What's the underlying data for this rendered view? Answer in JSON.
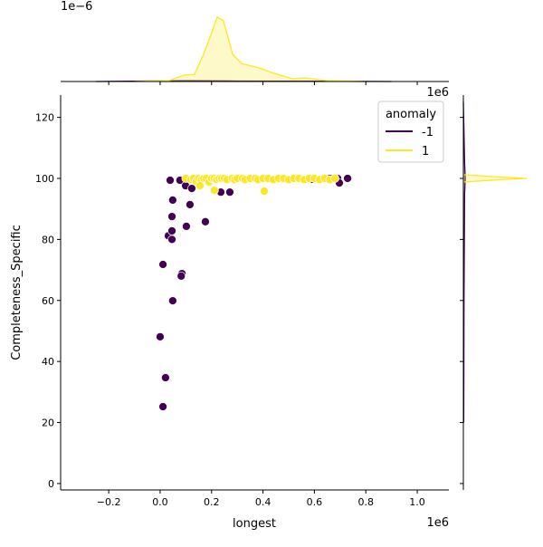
{
  "chart_data": {
    "type": "scatter",
    "subtype": "jointplot",
    "xlabel": "longest",
    "ylabel": "Completeness_Specific",
    "x_offset_label": "1e6",
    "top_marginal_offset_label": "1e6",
    "top_marginal_y_offset_label": "1e−6",
    "xlim": [
      -0.387,
      1.123
    ],
    "ylim": [
      -2.1,
      127.3
    ],
    "xticks": [
      -0.2,
      0.0,
      0.2,
      0.4,
      0.6,
      0.8,
      1.0
    ],
    "xtick_labels": [
      "−0.2",
      "0.0",
      "0.2",
      "0.4",
      "0.6",
      "0.8",
      "1.0"
    ],
    "yticks": [
      0,
      20,
      40,
      60,
      80,
      100,
      120
    ],
    "ytick_labels": [
      "0",
      "20",
      "40",
      "60",
      "80",
      "100",
      "120"
    ],
    "grid": false,
    "legend": {
      "title": "anomaly",
      "placement": "top-right",
      "entries": [
        "-1",
        "1"
      ]
    },
    "colors": {
      "-1": "#440154",
      "1": "#fde725"
    },
    "series": [
      {
        "name": "-1",
        "points": [
          [
            0.039,
            99.4
          ],
          [
            0.077,
            99.4
          ],
          [
            0.099,
            97.6
          ],
          [
            0.123,
            96.7
          ],
          [
            0.049,
            92.9
          ],
          [
            0.116,
            91.4
          ],
          [
            0.046,
            87.5
          ],
          [
            0.102,
            84.3
          ],
          [
            0.176,
            85.8
          ],
          [
            0.032,
            81.2
          ],
          [
            0.046,
            82.8
          ],
          [
            0.046,
            80.0
          ],
          [
            0.011,
            71.8
          ],
          [
            0.085,
            68.8
          ],
          [
            0.082,
            68.0
          ],
          [
            0.049,
            59.9
          ],
          [
            0.0,
            48.1
          ],
          [
            0.021,
            34.7
          ],
          [
            0.011,
            25.2
          ],
          [
            0.236,
            95.5
          ],
          [
            0.271,
            95.5
          ],
          [
            0.59,
            99.7
          ],
          [
            0.66,
            100.0
          ],
          [
            0.69,
            100.0
          ],
          [
            0.697,
            98.5
          ],
          [
            0.729,
            100.0
          ]
        ]
      },
      {
        "name": "1",
        "points": [
          [
            0.1,
            100
          ],
          [
            0.12,
            99.6
          ],
          [
            0.13,
            100
          ],
          [
            0.14,
            99.0
          ],
          [
            0.15,
            100
          ],
          [
            0.16,
            99.6
          ],
          [
            0.17,
            100
          ],
          [
            0.18,
            100
          ],
          [
            0.19,
            98.8
          ],
          [
            0.2,
            100
          ],
          [
            0.21,
            100
          ],
          [
            0.22,
            99.6
          ],
          [
            0.23,
            100
          ],
          [
            0.24,
            100
          ],
          [
            0.25,
            100
          ],
          [
            0.26,
            99.6
          ],
          [
            0.28,
            100
          ],
          [
            0.29,
            99.6
          ],
          [
            0.3,
            100
          ],
          [
            0.32,
            100
          ],
          [
            0.33,
            99.6
          ],
          [
            0.35,
            100
          ],
          [
            0.37,
            100
          ],
          [
            0.38,
            99.6
          ],
          [
            0.4,
            100
          ],
          [
            0.42,
            100
          ],
          [
            0.44,
            99.6
          ],
          [
            0.46,
            100
          ],
          [
            0.48,
            100
          ],
          [
            0.5,
            99.6
          ],
          [
            0.52,
            100
          ],
          [
            0.54,
            100
          ],
          [
            0.56,
            99.6
          ],
          [
            0.58,
            100
          ],
          [
            0.6,
            100
          ],
          [
            0.62,
            99.6
          ],
          [
            0.64,
            100
          ],
          [
            0.66,
            99.6
          ],
          [
            0.68,
            100
          ],
          [
            0.155,
            97.6
          ],
          [
            0.211,
            96.1
          ],
          [
            0.405,
            95.8
          ]
        ]
      }
    ],
    "top_marginal_kde": {
      "units": "1e-6",
      "ylim": [
        0,
        4.8
      ],
      "series": [
        {
          "name": "1",
          "x": [
            -0.1,
            0.035,
            0.092,
            0.134,
            0.169,
            0.2,
            0.222,
            0.246,
            0.282,
            0.317,
            0.387,
            0.433,
            0.514,
            0.563,
            0.65,
            0.8
          ],
          "density": [
            0,
            0.06,
            0.44,
            0.5,
            1.9,
            3.4,
            4.5,
            4.25,
            1.9,
            1.25,
            0.94,
            0.63,
            0.19,
            0.25,
            0.06,
            0
          ]
        },
        {
          "name": "-1",
          "x": [
            -0.25,
            0.0,
            0.1,
            0.3,
            0.6,
            0.9
          ],
          "density": [
            0,
            0.04,
            0.05,
            0.03,
            0.02,
            0
          ]
        }
      ]
    },
    "right_marginal_kde": {
      "series": [
        {
          "name": "1",
          "y": [
            98.8,
            99.6,
            100.0,
            100.4,
            101.2
          ],
          "density_fraction": [
            0,
            0.6,
            1.0,
            0.6,
            0
          ]
        },
        {
          "name": "-1",
          "y": [
            20,
            60,
            95,
            100,
            105,
            125
          ],
          "density_fraction": [
            0.005,
            0.01,
            0.02,
            0.03,
            0.02,
            0
          ]
        }
      ]
    }
  }
}
